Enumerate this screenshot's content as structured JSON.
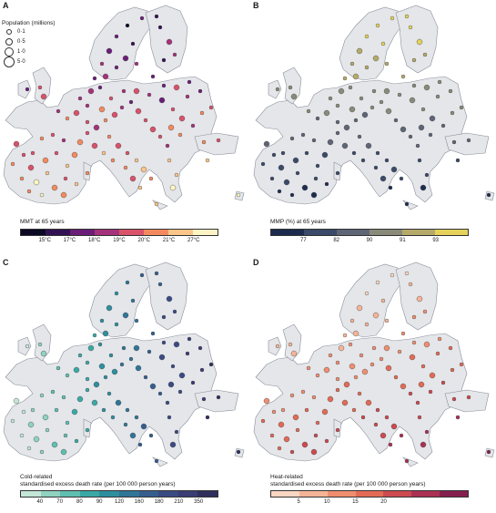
{
  "population_legend": {
    "title": "Population (millions)",
    "items": [
      {
        "label": "0·1",
        "size": 4
      },
      {
        "label": "0·5",
        "size": 6
      },
      {
        "label": "1·0",
        "size": 8
      },
      {
        "label": "5·0",
        "size": 10
      }
    ]
  },
  "panels": [
    {
      "id": "a",
      "letter": "A",
      "legend_title": "MMT at 65 years",
      "ticks": [
        "15°C",
        "17°C",
        "18°C",
        "19°C",
        "20°C",
        "21°C",
        "27°C"
      ],
      "colors": [
        "#0b0924",
        "#321253",
        "#6a1e78",
        "#a4327a",
        "#d9516a",
        "#f38a5f",
        "#fbc58a",
        "#fcf4c4"
      ]
    },
    {
      "id": "b",
      "letter": "B",
      "legend_title": "MMP (%) at 65 years",
      "ticks": [
        "77",
        "82",
        "90",
        "91",
        "93"
      ],
      "colors": [
        "#1d2c4e",
        "#3b4a68",
        "#5e6575",
        "#8a8a7a",
        "#b6aa6a",
        "#e4d25a"
      ]
    },
    {
      "id": "c",
      "letter": "C",
      "legend_title": "Cold-related\nstandardised excess death rate (per 100 000 person years)",
      "ticks": [
        "40",
        "70",
        "80",
        "90",
        "120",
        "160",
        "180",
        "210",
        "350"
      ],
      "colors": [
        "#c4e6d6",
        "#8fd2c0",
        "#5ebfb0",
        "#3aa9a6",
        "#2d8f9e",
        "#2f7597",
        "#355e8f",
        "#3a4a83",
        "#3a3c74",
        "#2f2e5c"
      ]
    },
    {
      "id": "d",
      "letter": "D",
      "legend_title": "Heat-related\nstandardised excess death rate (per 100 000 person years)",
      "ticks": [
        "5",
        "10",
        "15",
        "20"
      ],
      "colors": [
        "#fbd6c2",
        "#f6b497",
        "#ef8e6f",
        "#e36a55",
        "#cc4a50",
        "#ab3154",
        "#84204f"
      ]
    }
  ]
}
